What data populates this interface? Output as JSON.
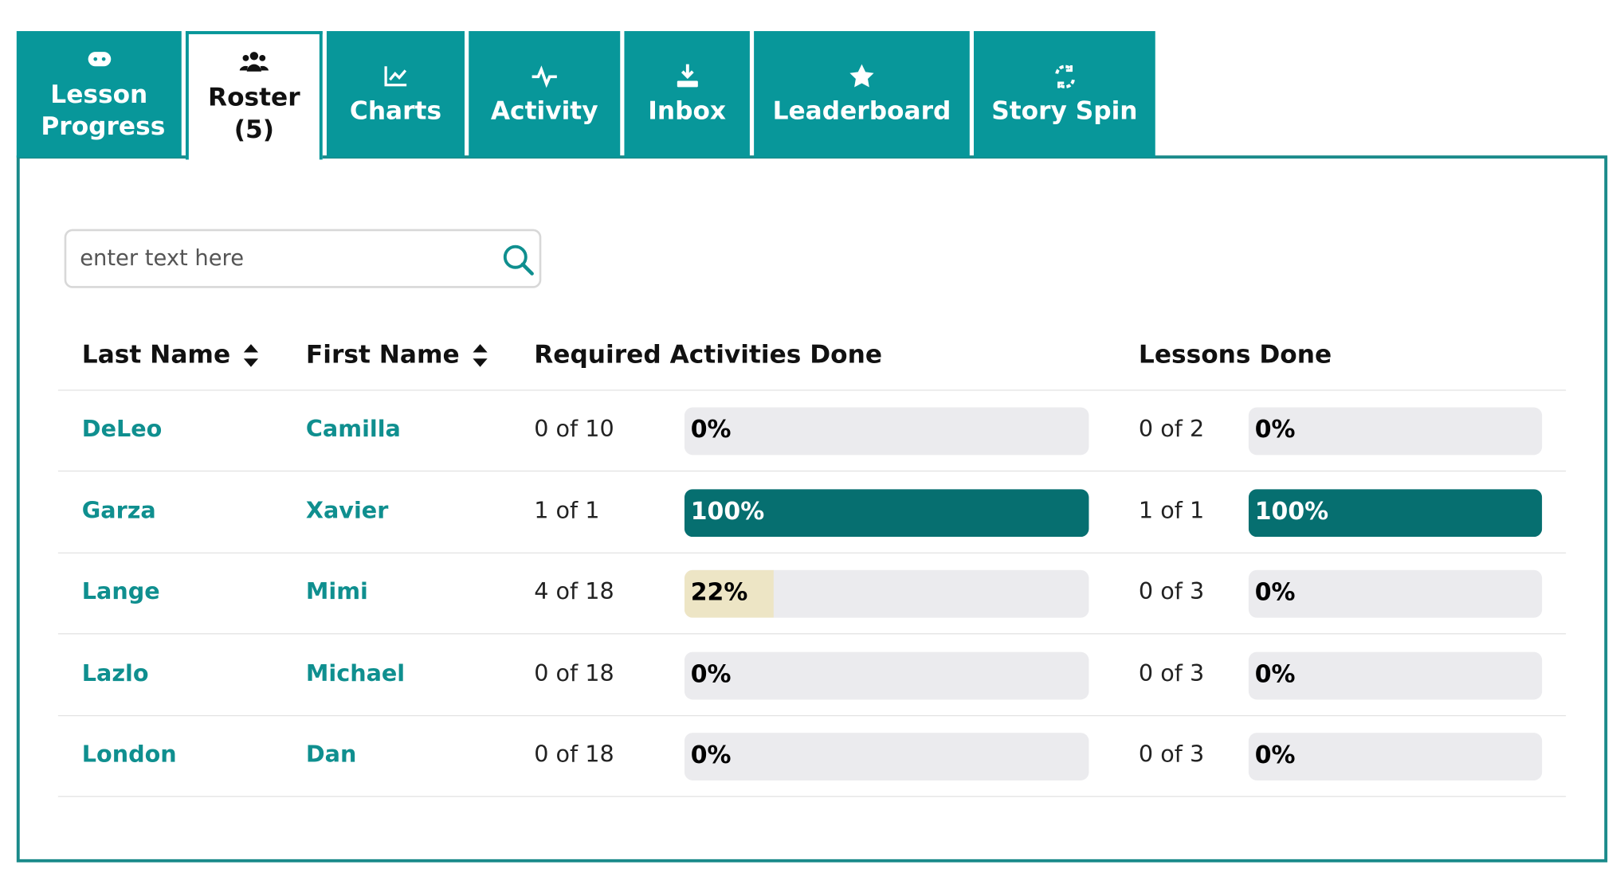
{
  "tabs": [
    {
      "label": "Lesson Progress",
      "active": false
    },
    {
      "label": "Roster (5)",
      "active": true
    },
    {
      "label": "Charts",
      "active": false
    },
    {
      "label": "Activity",
      "active": false
    },
    {
      "label": "Inbox",
      "active": false
    },
    {
      "label": "Leaderboard",
      "active": false
    },
    {
      "label": "Story Spin",
      "active": false
    }
  ],
  "search": {
    "placeholder": "enter text here"
  },
  "table": {
    "headers": [
      "Last Name",
      "First Name",
      "Required Activities Done",
      "Lessons Done"
    ],
    "rows": [
      {
        "last": "DeLeo",
        "first": "Camilla",
        "activities": "0 of 10",
        "activities_bar": {
          "label": "0%",
          "color": "#ede5c5"
        },
        "lessons": "0 of 2",
        "lessons_bar": {
          "label": "0%",
          "color": "#ede5c5"
        }
      },
      {
        "last": "Garza",
        "first": "Xavier",
        "activities": "1 of 1",
        "activities_bar": {
          "label": "100%",
          "color": "#066f70"
        },
        "lessons": "1 of 1",
        "lessons_bar": {
          "label": "100%",
          "color": "#066f70"
        }
      },
      {
        "last": "Lange",
        "first": "Mimi",
        "activities": "4 of 18",
        "activities_bar": {
          "label": "22%",
          "color": "#ede5c5"
        },
        "lessons": "0 of 3",
        "lessons_bar": {
          "label": "0%",
          "color": "#ede5c5"
        }
      },
      {
        "last": "Lazlo",
        "first": "Michael",
        "activities": "0 of 18",
        "activities_bar": {
          "label": "0%",
          "color": "#ede5c5"
        },
        "lessons": "0 of 3",
        "lessons_bar": {
          "label": "0%",
          "color": "#ede5c5"
        }
      },
      {
        "last": "London",
        "first": "Dan",
        "activities": "0 of 18",
        "activities_bar": {
          "label": "0%",
          "color": "#ede5c5"
        },
        "lessons": "0 of 3",
        "lessons_bar": {
          "label": "0%",
          "color": "#ede5c5"
        }
      }
    ]
  }
}
